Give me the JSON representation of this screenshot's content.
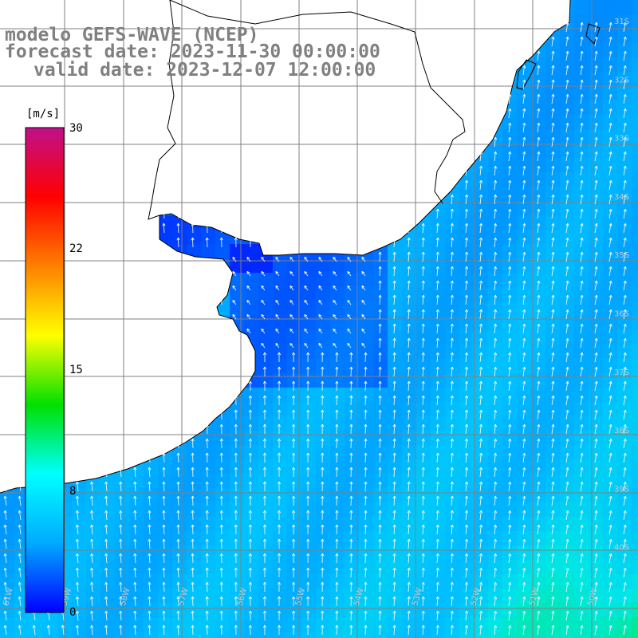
{
  "title": {
    "model": "modelo GEFS-WAVE (NCEP)",
    "forecast": "forecast date: 2023-11-30 00:00:00",
    "valid": "valid date: 2023-12-07 12:00:00"
  },
  "colorbar": {
    "unit": "[m/s]",
    "ticks": [
      "30",
      "22",
      "15",
      "8",
      "0"
    ],
    "min": 0,
    "max": 30,
    "colors": [
      "#0000ff",
      "#00aaff",
      "#00ffff",
      "#00e000",
      "#ffff00",
      "#ff8000",
      "#ff0000",
      "#c0108a"
    ]
  },
  "map": {
    "variable": "wind speed and direction",
    "land_color": "#ffffff",
    "coastline_color": "#000000",
    "grid_color": "#808080",
    "vector_color": "#ffffff",
    "lon_labels": [
      "61W",
      "59W",
      "58W",
      "57W",
      "56W",
      "55W",
      "54W",
      "53W",
      "52W",
      "51W",
      "50W"
    ],
    "lat_labels": [
      "31S",
      "32S",
      "33S",
      "34S",
      "35S",
      "36S",
      "37S",
      "38S",
      "39S",
      "40S"
    ]
  }
}
